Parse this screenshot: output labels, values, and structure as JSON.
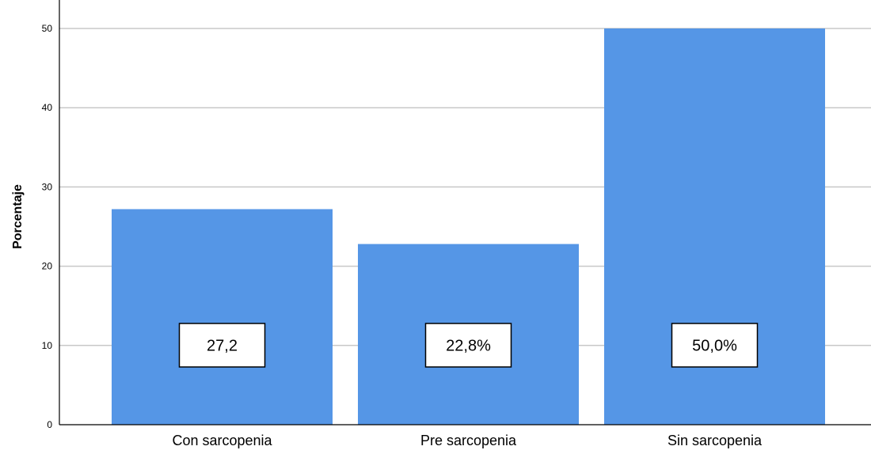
{
  "chart_data": {
    "type": "bar",
    "title": "",
    "xlabel": "",
    "ylabel": "Porcentaje",
    "ylim": [
      0,
      52
    ],
    "yticks": [
      0,
      10,
      20,
      30,
      40,
      50
    ],
    "grid": true,
    "categories": [
      "Con sarcopenia",
      "Pre sarcopenia",
      "Sin sarcopenia"
    ],
    "values": [
      27.2,
      22.8,
      50.0
    ],
    "data_labels": [
      "27,2",
      "22,8%",
      "50,0%"
    ],
    "colors": {
      "bar": "#5596e6",
      "grid": "#c8c8c8",
      "axis": "#000000"
    }
  }
}
